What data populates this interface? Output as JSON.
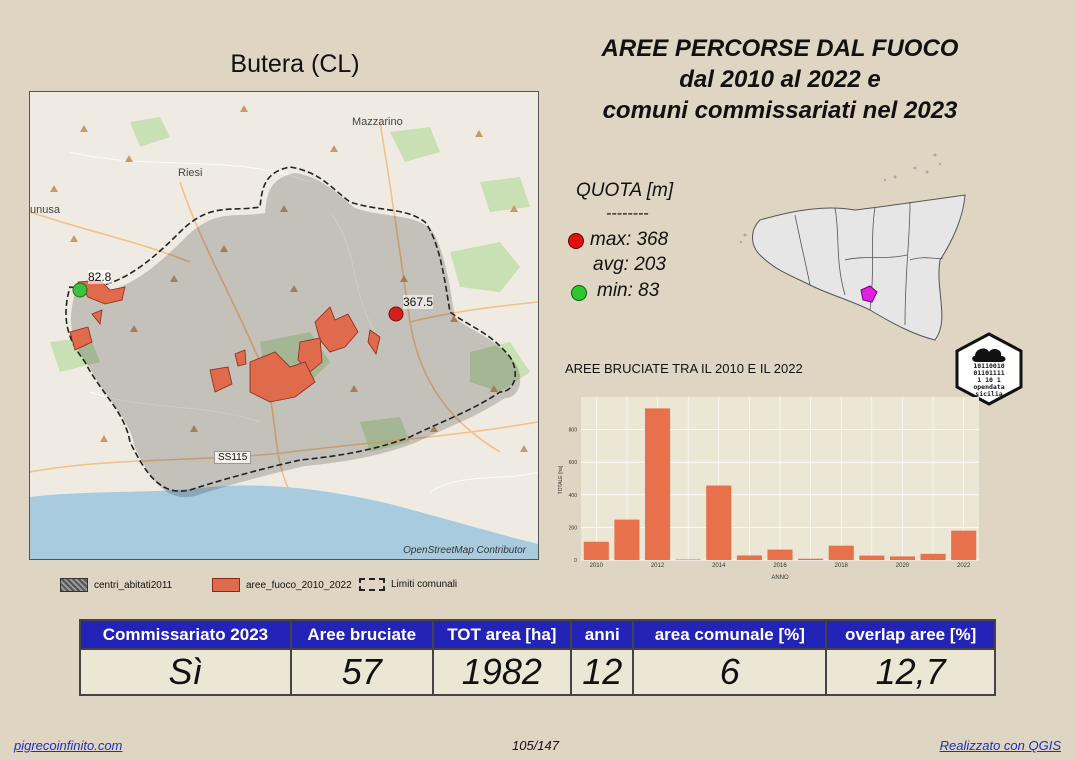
{
  "map": {
    "title": "Butera (CL)",
    "place_labels": [
      "Mazzarino",
      "Riesi",
      "unusa"
    ],
    "road_label": "SS115",
    "min_label": "82.8",
    "max_label": "367.5",
    "attribution": "OpenStreetMap Contributor"
  },
  "main_title": {
    "line1": "AREE PERCORSE DAL FUOCO",
    "line2": "dal 2010 al 2022 e",
    "line3": "comuni commissariati nel 2023"
  },
  "quota": {
    "title": "QUOTA [m]",
    "separator": "--------",
    "max": "max: 368",
    "avg": "avg: 203",
    "min": "min: 83",
    "max_color": "#e01010",
    "min_color": "#2ec82e"
  },
  "logo": {
    "binary": [
      "10110010",
      "01101111",
      "1 10 1"
    ],
    "text1": "opendata",
    "text2": "sicilia"
  },
  "chart_title": "AREE BRUCIATE TRA IL 2010 E IL 2022",
  "chart_data": {
    "type": "bar",
    "categories": [
      "2010",
      "2011",
      "2012",
      "2013",
      "2014",
      "2015",
      "2016",
      "2017",
      "2018",
      "2019",
      "2020",
      "2021",
      "2022"
    ],
    "values": [
      112,
      248,
      930,
      3,
      457,
      28,
      64,
      8,
      88,
      27,
      22,
      38,
      180
    ],
    "xticks": [
      "2010",
      "2012",
      "2014",
      "2016",
      "2018",
      "2020",
      "2022"
    ],
    "yticks": [
      "0",
      "200",
      "400",
      "600",
      "800"
    ],
    "ylim": [
      0,
      1000
    ],
    "xlabel": "ANNO",
    "ylabel": "TOTALE [ha]",
    "bar_color": "#e8714c"
  },
  "legend": {
    "items": [
      "centri_abitati2011",
      "aree_fuoco_2010_2022",
      "Limiti comunali"
    ]
  },
  "table": {
    "headers": [
      "Commissariato 2023",
      "Aree bruciate",
      "TOT area [ha]",
      "anni",
      "area comunale [%]",
      "overlap aree [%]"
    ],
    "values": [
      "Sì",
      "57",
      "1982",
      "12",
      "6",
      "12,7"
    ]
  },
  "footer": {
    "left": "pigrecoinfinito.com",
    "center": "105/147",
    "right": "Realizzato con QGIS"
  }
}
